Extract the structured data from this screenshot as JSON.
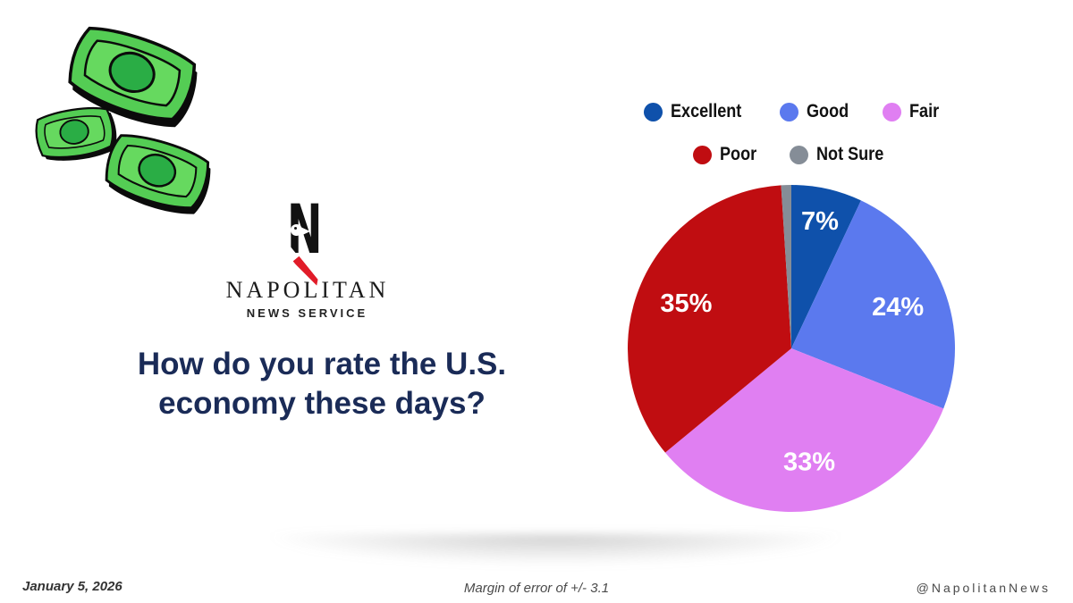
{
  "page": {
    "background": "#ffffff"
  },
  "decor": {
    "money_bills": {
      "body_green": "#54cd54",
      "panel_green": "#66d95f",
      "seal_green": "#2aad45",
      "outline": "#0b0b0b"
    }
  },
  "logo": {
    "wordmark": "NAPOLITAN",
    "subtext": "NEWS SERVICE",
    "mark_black": "#121212",
    "mark_red": "#e11c29"
  },
  "title": {
    "line1": "How do you rate the U.S.",
    "line2": "economy these days?",
    "color": "#1a2b57"
  },
  "chart_data": {
    "type": "pie",
    "title": "How do you rate the U.S. economy these days?",
    "labels": [
      "Excellent",
      "Good",
      "Fair",
      "Poor",
      "Not Sure"
    ],
    "values": [
      7,
      24,
      33,
      35,
      1
    ],
    "colors": [
      "#0f51ab",
      "#5b79ee",
      "#e07ff2",
      "#c00d11",
      "#858d97"
    ],
    "data_labels": [
      "7%",
      "24%",
      "33%",
      "35%",
      ""
    ],
    "label_color": "#ffffff",
    "legend_position": "top",
    "legend_rows": [
      [
        "Excellent",
        "Good",
        "Fair"
      ],
      [
        "Poor",
        "Not Sure"
      ]
    ],
    "start_angle_deg": 0,
    "direction": "clockwise"
  },
  "footer": {
    "date": "January 5, 2026",
    "note": "Margin of error of +/- 3.1",
    "handle": "@NapolitanNews"
  }
}
